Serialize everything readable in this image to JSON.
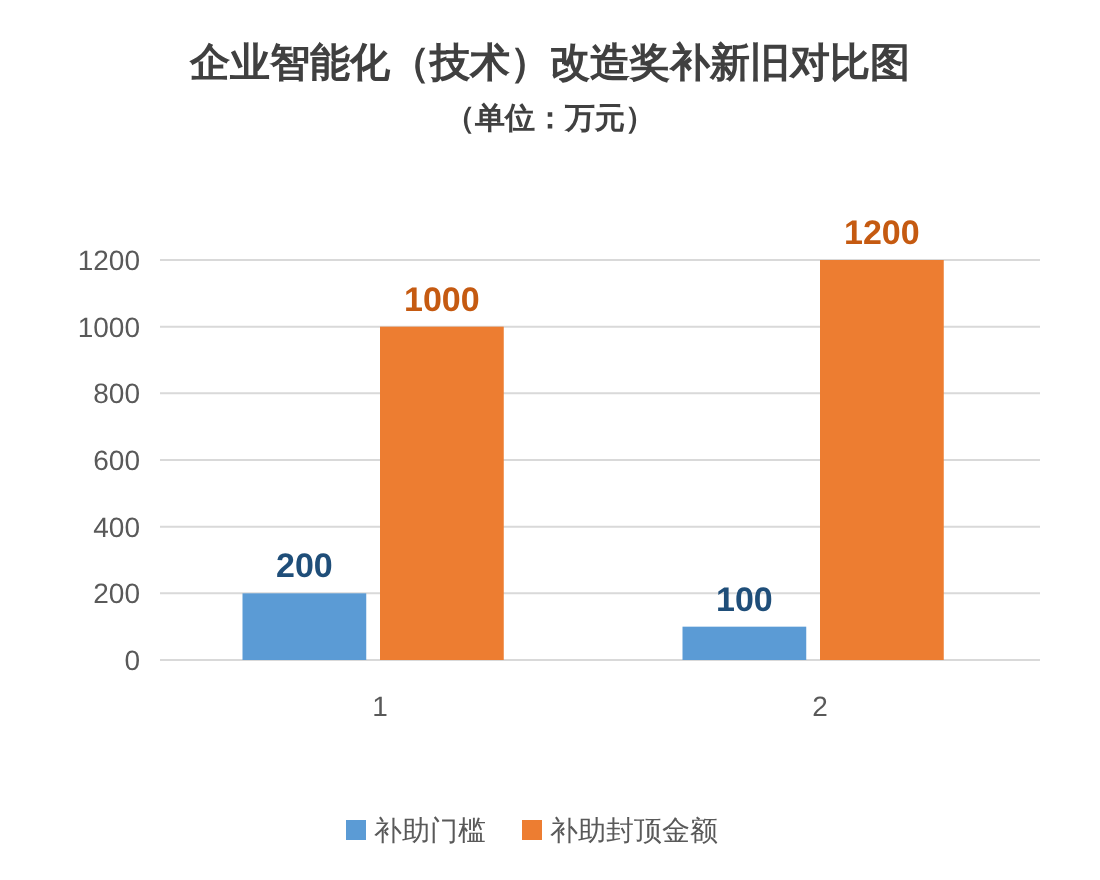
{
  "chart_data": {
    "type": "bar",
    "title": "企业智能化（技术）改造奖补新旧对比图",
    "subtitle": "（单位：万元）",
    "categories": [
      "1",
      "2"
    ],
    "series": [
      {
        "name": "补助门槛",
        "color": "#5b9bd5",
        "values": [
          200,
          100
        ]
      },
      {
        "name": "补助封顶金额",
        "color": "#ed7d31",
        "values": [
          1000,
          1200
        ]
      }
    ],
    "ylim": [
      0,
      1200
    ],
    "yticks": [
      0,
      200,
      400,
      600,
      800,
      1000,
      1200
    ],
    "grid": "y",
    "data_labels": true,
    "legend": "bottom"
  }
}
